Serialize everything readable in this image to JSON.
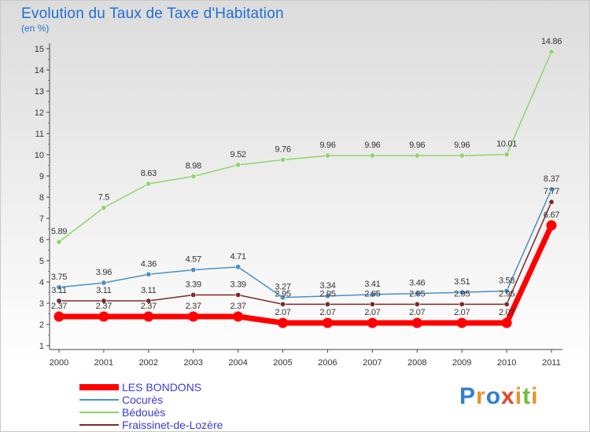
{
  "title": "Evolution du Taux de Taxe d'Habitation",
  "unit_label": "(en %)",
  "logo": {
    "text": "Proxiti",
    "letter_colors": [
      "#2e7fd6",
      "#e8932a",
      "#2e7fd6",
      "#e8432a",
      "#e8932a",
      "#6cbf3a",
      "#e8932a"
    ]
  },
  "chart_data": {
    "type": "line",
    "title": "Evolution du Taux de Taxe d'Habitation",
    "ylabel": "(en %)",
    "xlabel": "",
    "x": [
      "2000",
      "2001",
      "2002",
      "2003",
      "2004",
      "2005",
      "2006",
      "2007",
      "2008",
      "2009",
      "2010",
      "2011"
    ],
    "ylim": [
      1,
      15
    ],
    "yticks": [
      "1",
      "2",
      "3",
      "4",
      "5",
      "6",
      "7",
      "8",
      "9",
      "10",
      "11",
      "12",
      "13",
      "14",
      "15"
    ],
    "grid": false,
    "legend_position": "bottom-left",
    "series": [
      {
        "name": "LES BONDONS",
        "color": "#ff0000",
        "values": [
          2.37,
          2.37,
          2.37,
          2.37,
          2.37,
          2.07,
          2.07,
          2.07,
          2.07,
          2.07,
          2.07,
          6.67
        ],
        "labels": [
          "2.37",
          "2.37",
          "2.37",
          "2.37",
          "2.37",
          "2.07",
          "2.07",
          "2.07",
          "2.07",
          "2.07",
          "2.07",
          "6.67"
        ]
      },
      {
        "name": "Cocurès",
        "color": "#4a90c8",
        "values": [
          3.75,
          3.96,
          4.36,
          4.57,
          4.71,
          3.27,
          3.34,
          3.41,
          3.46,
          3.51,
          3.58,
          8.37
        ],
        "labels": [
          "3.75",
          "3.96",
          "4.36",
          "4.57",
          "4.71",
          "3.27",
          "3.34",
          "3.41",
          "3.46",
          "3.51",
          "3.58",
          "8.37"
        ]
      },
      {
        "name": "Bédouès",
        "color": "#8fd46a",
        "values": [
          5.89,
          7.5,
          8.63,
          8.98,
          9.52,
          9.76,
          9.96,
          9.96,
          9.96,
          9.96,
          10.01,
          14.86
        ],
        "labels": [
          "5.89",
          "7.5",
          "8.63",
          "8.98",
          "9.52",
          "9.76",
          "9.96",
          "9.96",
          "9.96",
          "9.96",
          "10.01",
          "14.86"
        ]
      },
      {
        "name": "Fraissinet-de-Lozère",
        "color": "#7a2a2a",
        "values": [
          3.11,
          3.11,
          3.11,
          3.39,
          3.39,
          2.95,
          2.95,
          2.95,
          2.95,
          2.95,
          2.95,
          7.77
        ],
        "labels": [
          "3.11",
          "3.11",
          "3.11",
          "3.39",
          "3.39",
          "2.95",
          "2.95",
          "2.95",
          "2.95",
          "2.95",
          "2.95",
          "7.77"
        ]
      }
    ]
  }
}
